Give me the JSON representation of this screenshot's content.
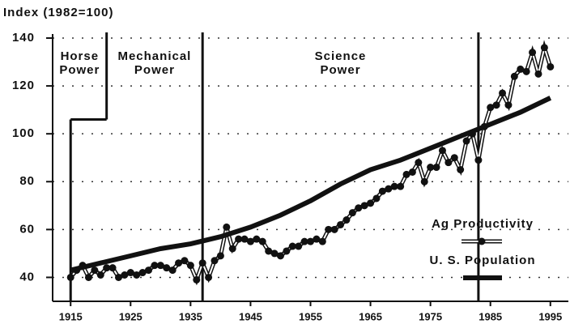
{
  "chart_data": {
    "type": "line",
    "ylabel": "Index (1982=100)",
    "xlim": [
      1912,
      1998
    ],
    "ylim": [
      30,
      140
    ],
    "xticks": [
      1915,
      1925,
      1935,
      1945,
      1955,
      1965,
      1975,
      1985,
      1995
    ],
    "yticks": [
      40,
      60,
      80,
      100,
      120,
      140
    ],
    "grid": true,
    "legend": "lower right",
    "series": [
      {
        "name": "Ag Productivity",
        "color": "#111111",
        "marker": true,
        "x": [
          1915,
          1916,
          1917,
          1918,
          1919,
          1920,
          1921,
          1922,
          1923,
          1924,
          1925,
          1926,
          1927,
          1928,
          1929,
          1930,
          1931,
          1932,
          1933,
          1934,
          1935,
          1936,
          1937,
          1938,
          1939,
          1940,
          1941,
          1942,
          1943,
          1944,
          1945,
          1946,
          1947,
          1948,
          1949,
          1950,
          1951,
          1952,
          1953,
          1954,
          1955,
          1956,
          1957,
          1958,
          1959,
          1960,
          1961,
          1962,
          1963,
          1964,
          1965,
          1966,
          1967,
          1968,
          1969,
          1970,
          1971,
          1972,
          1973,
          1974,
          1975,
          1976,
          1977,
          1978,
          1979,
          1980,
          1981,
          1982,
          1983,
          1984,
          1985,
          1986,
          1987,
          1988,
          1989,
          1990,
          1991,
          1992,
          1993,
          1994,
          1995
        ],
        "values": [
          40,
          43,
          45,
          40,
          43,
          41,
          44,
          44,
          40,
          41,
          42,
          41,
          42,
          43,
          45,
          45,
          44,
          43,
          46,
          47,
          45,
          39,
          46,
          40,
          47,
          49,
          61,
          52,
          56,
          56,
          55,
          56,
          55,
          51,
          50,
          49,
          51,
          53,
          53,
          55,
          55,
          56,
          55,
          60,
          60,
          62,
          64,
          67,
          69,
          70,
          71,
          73,
          76,
          77,
          78,
          78,
          83,
          84,
          88,
          80,
          86,
          86,
          93,
          88,
          90,
          85,
          97,
          100,
          89,
          103,
          111,
          112,
          117,
          112,
          124,
          127,
          126,
          134,
          125,
          136,
          128
        ]
      },
      {
        "name": "U. S. Population",
        "color": "#111111",
        "marker": false,
        "x": [
          1915,
          1920,
          1925,
          1930,
          1935,
          1940,
          1945,
          1950,
          1955,
          1960,
          1965,
          1970,
          1975,
          1980,
          1985,
          1990,
          1995
        ],
        "values": [
          43,
          46,
          49,
          52,
          54,
          57,
          61,
          66,
          72,
          79,
          85,
          89,
          94,
          99,
          104,
          109,
          115
        ]
      }
    ],
    "eras": [
      {
        "lines": [
          "Horse",
          "Power"
        ]
      },
      {
        "lines": [
          "Mechanical",
          "Power"
        ]
      },
      {
        "lines": [
          "Science",
          "Power"
        ]
      }
    ],
    "era_lines": [
      1915,
      1921,
      1937,
      1983
    ],
    "horse_step": 106
  }
}
